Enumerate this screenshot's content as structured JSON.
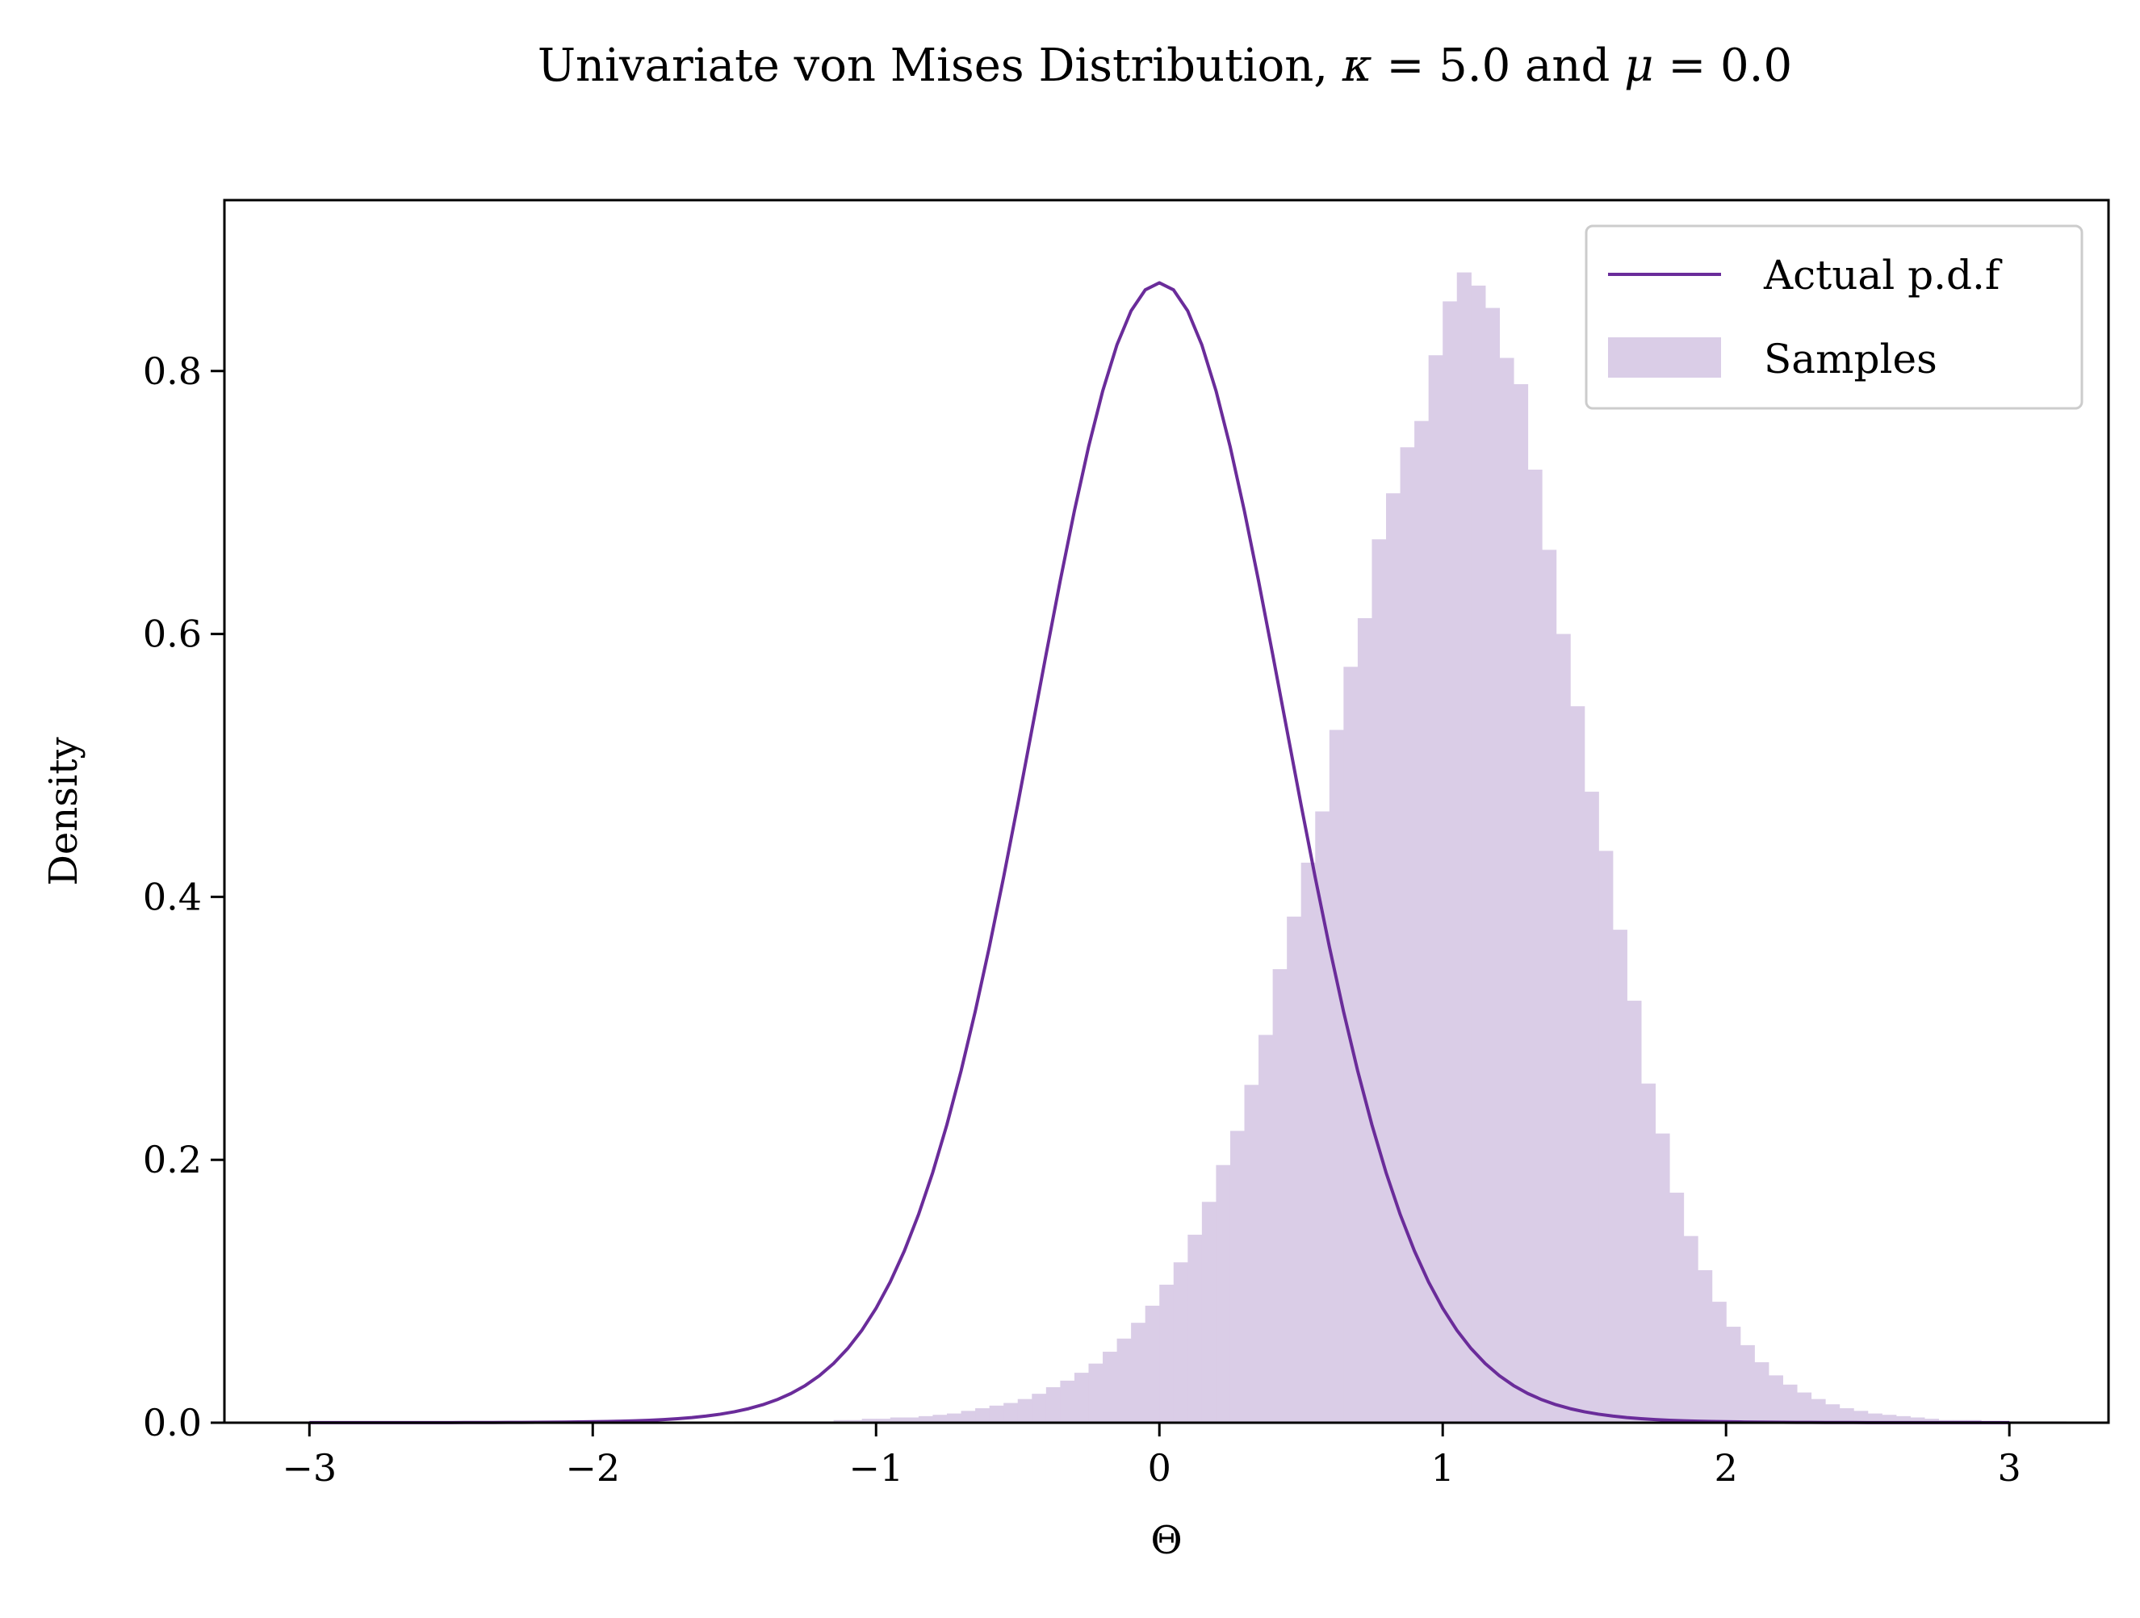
{
  "chart_data": {
    "type": "histogram",
    "title_parts": {
      "prefix": "Univariate von Mises Distribution, ",
      "kappa_symbol": "κ",
      "kappa_eq": " = 5.0 and ",
      "mu_symbol": "μ",
      "mu_eq": " = 0.0"
    },
    "xlabel": "Θ",
    "ylabel": "Density",
    "xlim": [
      -3.3,
      3.35
    ],
    "ylim": [
      0.0,
      0.93
    ],
    "xticks": [
      -3,
      -2,
      -1,
      0,
      1,
      2,
      3
    ],
    "xtick_labels": [
      "−3",
      "−2",
      "−1",
      "0",
      "1",
      "2",
      "3"
    ],
    "yticks": [
      0.0,
      0.2,
      0.4,
      0.6,
      0.8
    ],
    "ytick_labels": [
      "0.0",
      "0.2",
      "0.4",
      "0.6",
      "0.8"
    ],
    "grid": false,
    "legend": {
      "placement": "top-right",
      "entries": [
        {
          "label": "Actual p.d.f",
          "kind": "line"
        },
        {
          "label": "Samples",
          "kind": "patch"
        }
      ]
    },
    "series": [
      {
        "name": "Actual p.d.f",
        "kind": "line",
        "color": "#6a2c9a",
        "distribution": "von_mises",
        "kappa": 5.0,
        "mu": 0.0,
        "x_range": [
          -3.0,
          3.0
        ]
      },
      {
        "name": "Samples",
        "kind": "histogram",
        "color": "#dacde7",
        "bin_width": 0.05,
        "bin_start": -3.0,
        "values": [
          0.0,
          0.0,
          0.0,
          0.0,
          0.0,
          0.0,
          0.0,
          0.0,
          0.0,
          0.0,
          0.0,
          0.0,
          0.0,
          0.0,
          0.0,
          0.0,
          0.0,
          0.0,
          0.0,
          0.0,
          0.0,
          0.0,
          0.0,
          0.0,
          0.0,
          0.0,
          0.0,
          0.0,
          0.0,
          0.0,
          0.001,
          0.001,
          0.001,
          0.001,
          0.001,
          0.001,
          0.001,
          0.002,
          0.002,
          0.003,
          0.003,
          0.004,
          0.004,
          0.005,
          0.006,
          0.007,
          0.009,
          0.011,
          0.013,
          0.015,
          0.018,
          0.022,
          0.027,
          0.032,
          0.038,
          0.045,
          0.054,
          0.064,
          0.076,
          0.089,
          0.105,
          0.122,
          0.143,
          0.168,
          0.196,
          0.222,
          0.257,
          0.295,
          0.345,
          0.385,
          0.426,
          0.465,
          0.527,
          0.575,
          0.612,
          0.672,
          0.707,
          0.742,
          0.762,
          0.812,
          0.853,
          0.875,
          0.865,
          0.848,
          0.81,
          0.79,
          0.725,
          0.664,
          0.6,
          0.545,
          0.48,
          0.435,
          0.375,
          0.321,
          0.258,
          0.22,
          0.175,
          0.142,
          0.116,
          0.092,
          0.073,
          0.059,
          0.046,
          0.036,
          0.029,
          0.023,
          0.018,
          0.014,
          0.011,
          0.009,
          0.007,
          0.006,
          0.005,
          0.004,
          0.003,
          0.002,
          0.002,
          0.002,
          0.001,
          0.001,
          0.001,
          0.001,
          0.001,
          0.001,
          0.0,
          0.0,
          0.0,
          0.0,
          0.0,
          0.0,
          0.0,
          0.0,
          0.0,
          0.0,
          0.0,
          0.0,
          0.0,
          0.0,
          0.0,
          0.0,
          0.0,
          0.0,
          0.0,
          0.0,
          0.0,
          0.0,
          0.0,
          0.0,
          0.0,
          0.0,
          0.0,
          0.0,
          0.0,
          0.0,
          0.0
        ]
      }
    ]
  }
}
